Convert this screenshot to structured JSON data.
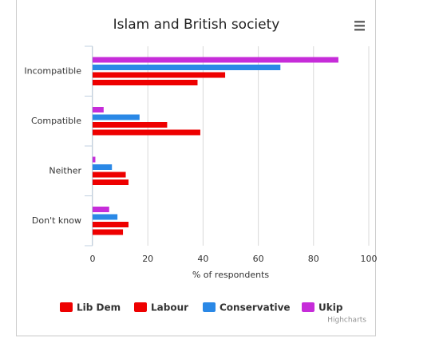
{
  "chart_data": {
    "type": "bar",
    "title": "Islam and British society",
    "categories": [
      "Incompatible",
      "Compatible",
      "Neither",
      "Don't know"
    ],
    "series": [
      {
        "name": "Lib Dem",
        "color": "#ee0000",
        "values": [
          38,
          39,
          13,
          11
        ]
      },
      {
        "name": "Labour",
        "color": "#ee0000",
        "values": [
          48,
          27,
          12,
          13
        ]
      },
      {
        "name": "Conservative",
        "color": "#2a88e6",
        "values": [
          68,
          17,
          7,
          9
        ]
      },
      {
        "name": "Ukip",
        "color": "#c62cd9",
        "values": [
          89,
          4,
          1,
          6
        ]
      }
    ],
    "xlabel": "% of respondents",
    "xlim": [
      0,
      100
    ],
    "xticks": [
      0,
      20,
      40,
      60,
      80,
      100
    ],
    "grid": true,
    "legend": "bottom",
    "credits": "Highcharts"
  }
}
